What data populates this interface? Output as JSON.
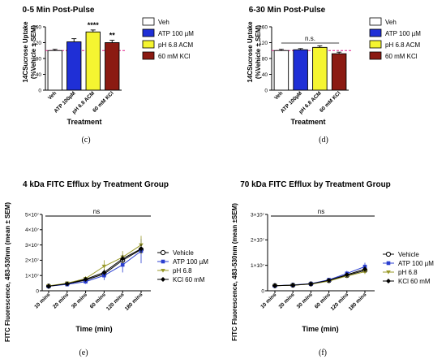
{
  "colors": {
    "veh": "#ffffff",
    "atp": "#1f2fd6",
    "ph": "#f5f531",
    "kcl": "#8b1a12",
    "ref_line": "#e0208a",
    "vehicle_line": "#000000",
    "atp_line": "#2b3fd0",
    "ph_line": "#9a9a2a",
    "kcl_line": "#000000"
  },
  "captions": [
    "(c)",
    "(d)",
    "(e)",
    "(f)"
  ],
  "chart_data": [
    {
      "id": "c",
      "type": "bar",
      "title": "0-5 Min Post-Pulse",
      "ylabel_line1": "14CSucrose Uptake",
      "ylabel_line2": "(%Vehicle ± SEM)",
      "xlabel": "Treatment",
      "ylim": [
        0,
        160
      ],
      "yticks": [
        "0",
        "40",
        "80",
        "120",
        "160"
      ],
      "categories": [
        "Veh",
        "ATP 100µM",
        "pH 6.8 ACM",
        "60 mM KCl"
      ],
      "values": [
        100,
        122,
        147,
        120
      ],
      "errors": [
        3,
        8,
        5,
        6
      ],
      "significance": [
        "",
        "",
        "****",
        "**"
      ],
      "reference": 100,
      "legend": [
        "Veh",
        "ATP 100 µM",
        "pH 6.8 ACM",
        "60 mM KCl"
      ]
    },
    {
      "id": "d",
      "type": "bar",
      "title": "6-30 Min Post-Pulse",
      "ylabel_line1": "14CSucrose Uptake",
      "ylabel_line2": "(%Vehicle ± SEM)",
      "xlabel": "Treatment",
      "ylim": [
        0,
        160
      ],
      "yticks": [
        "0",
        "40",
        "80",
        "120",
        "160"
      ],
      "categories": [
        "Veh",
        "ATP 100µM",
        "pH 6.8 ACM",
        "60 mM KCl"
      ],
      "values": [
        100,
        102,
        108,
        92
      ],
      "errors": [
        3,
        3,
        4,
        4
      ],
      "bracket_label": "n.s.",
      "reference": 100,
      "legend": [
        "Veh",
        "ATP 100 µM",
        "pH 6.8 ACM",
        "60 mM KCl"
      ]
    },
    {
      "id": "e",
      "type": "line",
      "title": "4 kDa FITC Efflux by Treatment Group",
      "ylabel": "FITC Fluorescence, 483-530nm (mean ± SEM)",
      "xlabel": "Time (min)",
      "categories": [
        "10 mins",
        "20 mins",
        "30 mins",
        "60 mins",
        "120 mins",
        "180 mins"
      ],
      "ylim": [
        0,
        50000000
      ],
      "yticks": [
        "0",
        "1×10⁷",
        "2×10⁷",
        "3×10⁷",
        "4×10⁷",
        "5×10⁷"
      ],
      "bracket_label": "ns",
      "series": [
        {
          "name": "Vehicle",
          "values": [
            3000000,
            4500000,
            7000000,
            11000000,
            20000000,
            27000000
          ],
          "errors": [
            300000,
            400000,
            800000,
            1500000,
            2000000,
            2000000
          ]
        },
        {
          "name": "ATP 100 µM",
          "values": [
            3000000,
            4200000,
            6000000,
            10000000,
            17000000,
            26000000
          ],
          "errors": [
            300000,
            500000,
            1500000,
            3000000,
            5000000,
            8000000
          ]
        },
        {
          "name": "pH 6.8",
          "values": [
            3200000,
            5000000,
            8000000,
            16000000,
            22000000,
            30000000
          ],
          "errors": [
            300000,
            600000,
            1500000,
            4000000,
            4000000,
            6000000
          ]
        },
        {
          "name": "KCl 60 mM",
          "values": [
            3000000,
            4600000,
            7500000,
            12000000,
            21000000,
            27500000
          ],
          "errors": [
            300000,
            400000,
            900000,
            2000000,
            2500000,
            3000000
          ]
        }
      ]
    },
    {
      "id": "f",
      "type": "line",
      "title": "70 kDa FITC Efflux by Treatment Group",
      "ylabel": "FITC Fluorescence, 483-530nm (mean ±SEM)",
      "xlabel": "Time (min)",
      "categories": [
        "10 mins",
        "20 mins",
        "30 mins",
        "60 mins",
        "120 mins",
        "180 mins"
      ],
      "ylim": [
        0,
        30000000
      ],
      "yticks": [
        "0",
        "1×10⁷",
        "2×10⁷",
        "3×10⁷"
      ],
      "bracket_label": "ns",
      "series": [
        {
          "name": "Vehicle",
          "values": [
            2000000,
            2200000,
            2700000,
            4000000,
            6000000,
            8000000
          ],
          "errors": [
            200000,
            200000,
            300000,
            500000,
            800000,
            1000000
          ]
        },
        {
          "name": "ATP 100 µM",
          "values": [
            2000000,
            2300000,
            2800000,
            4300000,
            6800000,
            9500000
          ],
          "errors": [
            200000,
            200000,
            300000,
            600000,
            1000000,
            1500000
          ]
        },
        {
          "name": "pH 6.8",
          "values": [
            2000000,
            2200000,
            2600000,
            3800000,
            5800000,
            7500000
          ],
          "errors": [
            200000,
            200000,
            300000,
            500000,
            700000,
            900000
          ]
        },
        {
          "name": "KCl 60 mM",
          "values": [
            2000000,
            2200000,
            2700000,
            4100000,
            6300000,
            8500000
          ],
          "errors": [
            200000,
            200000,
            300000,
            500000,
            900000,
            1100000
          ]
        }
      ]
    }
  ]
}
